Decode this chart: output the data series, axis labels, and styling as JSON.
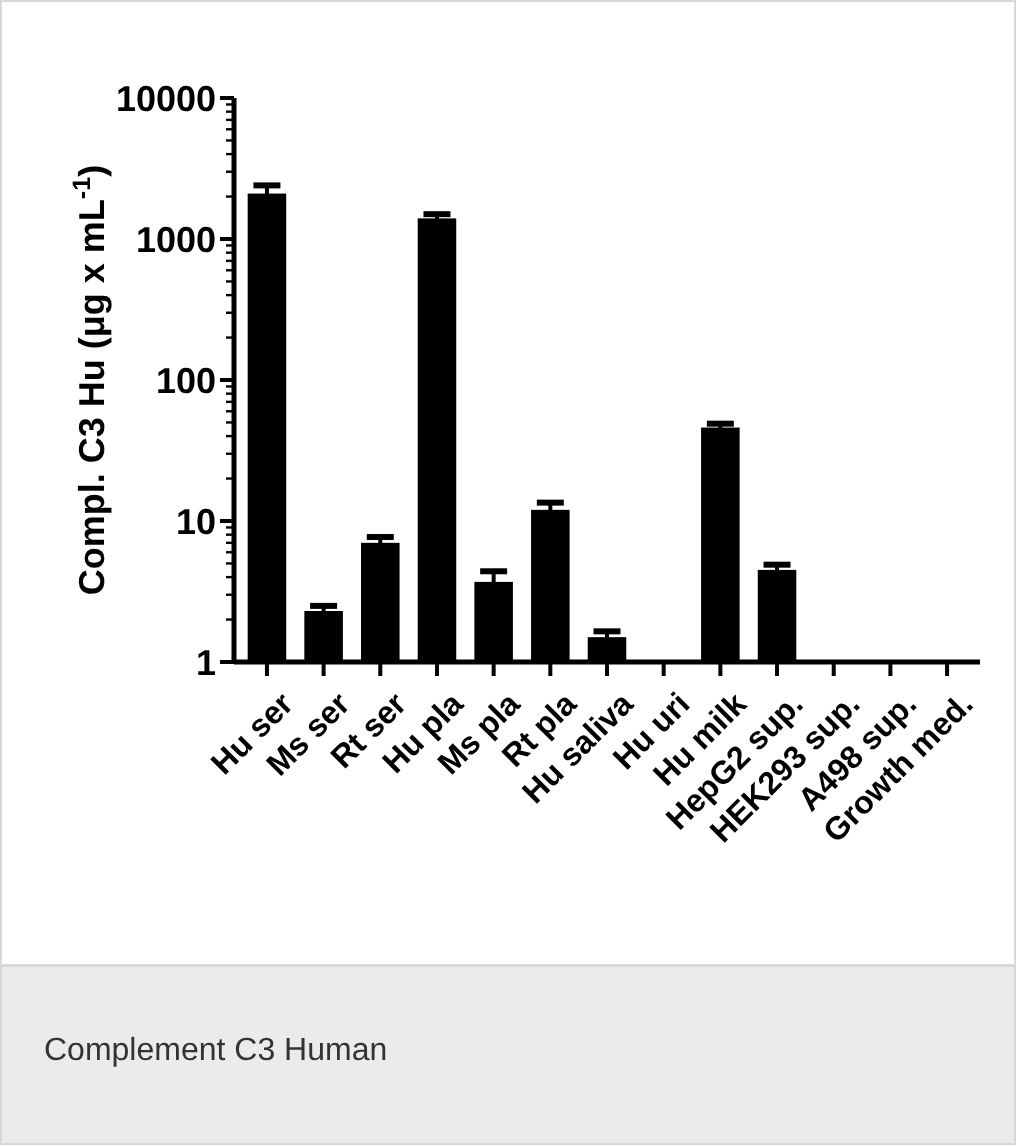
{
  "chart_data": {
    "type": "bar",
    "ylabel": "Compl. C3 Hu (μg x mL$^{-1}$)",
    "categories": [
      "Hu ser",
      "Ms ser",
      "Rt ser",
      "Hu pla",
      "Ms pla",
      "Rt pla",
      "Hu saliva",
      "Hu uri",
      "Hu milk",
      "HepG2 sup.",
      "HEK293 sup.",
      "A498 sup.",
      "Growth med."
    ],
    "values": [
      2100,
      2.3,
      7,
      1400,
      3.7,
      12,
      1.5,
      null,
      46,
      4.5,
      null,
      null,
      null
    ],
    "errors": [
      300,
      0.2,
      0.7,
      100,
      0.7,
      1.5,
      0.15,
      null,
      3,
      0.4,
      null,
      null,
      null
    ],
    "color": "#000000",
    "log": true,
    "ylim": [
      1,
      10000
    ],
    "yticks": [
      1,
      {
        "value": 2,
        "label": null
      },
      {
        "value": 3,
        "label": null
      },
      {
        "value": 4,
        "label": null
      },
      {
        "value": 5,
        "label": null
      },
      {
        "value": 6,
        "label": null
      },
      {
        "value": 7,
        "label": null
      },
      {
        "value": 8,
        "label": null
      },
      {
        "value": 9,
        "label": null
      },
      10,
      {
        "value": 20,
        "label": null
      },
      {
        "value": 30,
        "label": null
      },
      {
        "value": 40,
        "label": null
      },
      {
        "value": 50,
        "label": null
      },
      {
        "value": 60,
        "label": null
      },
      {
        "value": 70,
        "label": null
      },
      {
        "value": 80,
        "label": null
      },
      {
        "value": 90,
        "label": null
      },
      100,
      {
        "value": 200,
        "label": null
      },
      {
        "value": 300,
        "label": null
      },
      {
        "value": 400,
        "label": null
      },
      {
        "value": 500,
        "label": null
      },
      {
        "value": 600,
        "label": null
      },
      {
        "value": 700,
        "label": null
      },
      {
        "value": 800,
        "label": null
      },
      {
        "value": 900,
        "label": null
      },
      1000,
      {
        "value": 2000,
        "label": null
      },
      {
        "value": 3000,
        "label": null
      },
      {
        "value": 4000,
        "label": null
      },
      {
        "value": 5000,
        "label": null
      },
      {
        "value": 6000,
        "label": null
      },
      {
        "value": 7000,
        "label": null
      },
      {
        "value": 8000,
        "label": null
      },
      {
        "value": 9000,
        "label": null
      },
      10000
    ],
    "grid": false,
    "annotations": [
      "Complement C3 Human"
    ]
  }
}
